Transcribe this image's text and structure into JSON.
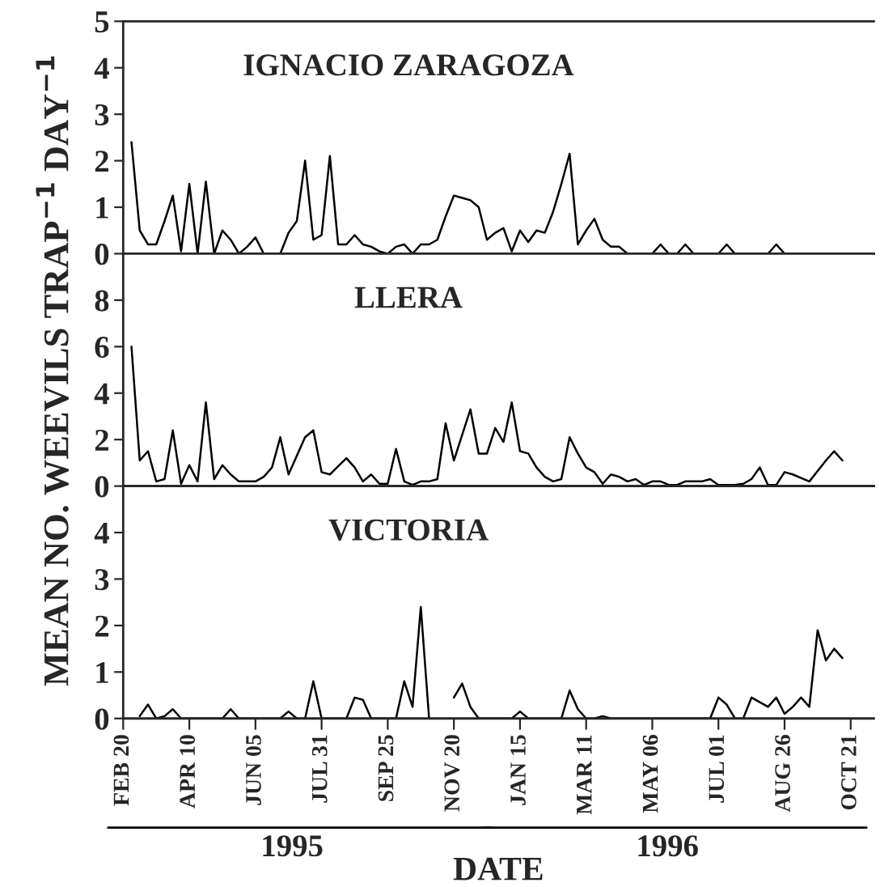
{
  "chart_data": [
    {
      "type": "line",
      "title": "IGNACIO ZARAGOZA",
      "ylim": [
        0,
        5
      ],
      "yticks": [
        0,
        1,
        2,
        3,
        4,
        5
      ],
      "tick_labels": "y",
      "categories": [
        null,
        null,
        null,
        null,
        null,
        null,
        null,
        null,
        null,
        null,
        null,
        null,
        null,
        null,
        null,
        null,
        null,
        null,
        null,
        null,
        null,
        null,
        null,
        null,
        null,
        null,
        null,
        null,
        null,
        null,
        null,
        null,
        null,
        null,
        null,
        null,
        null,
        null,
        null,
        null,
        null,
        null,
        null,
        null,
        null,
        null,
        null,
        null,
        null,
        null,
        null,
        null,
        null,
        null,
        null,
        null,
        null,
        null,
        null,
        null,
        null,
        null,
        null,
        null,
        null,
        null,
        null,
        null,
        null,
        null,
        null,
        null,
        null,
        null,
        null,
        null,
        null,
        null,
        null,
        null,
        null,
        null,
        null,
        null,
        null,
        null,
        null,
        null,
        null,
        null,
        null
      ],
      "series": [
        {
          "color": "#000000",
          "values": [
            null,
            2.4,
            0.5,
            0.2,
            0.2,
            0.7,
            1.25,
            0.05,
            1.5,
            0,
            1.55,
            0,
            0.5,
            0.3,
            0,
            0.15,
            0.35,
            0,
            0,
            0,
            0.45,
            0.7,
            2.0,
            0.3,
            0.4,
            2.1,
            0.2,
            0.2,
            0.4,
            0.2,
            0.15,
            0.05,
            0,
            0.15,
            0.2,
            0,
            0.2,
            0.2,
            0.3,
            0.8,
            1.25,
            1.2,
            1.15,
            1.0,
            0.3,
            0.45,
            0.55,
            0.05,
            0.5,
            0.25,
            0.5,
            0.45,
            0.9,
            1.5,
            2.15,
            0.2,
            0.5,
            0.75,
            0.3,
            0.15,
            0.15,
            0,
            0,
            0,
            0,
            0.2,
            0,
            0,
            0.2,
            0,
            0,
            0,
            0,
            0.2,
            0,
            0,
            0,
            0,
            0,
            0.2,
            0,
            0,
            0,
            0,
            0,
            0,
            0,
            0,
            null,
            null,
            null
          ]
        }
      ]
    },
    {
      "type": "line",
      "title": "LLERA",
      "ylabel": "MEAN NO. WEEVILS TRAP$^{−1}$ DAY$^{−1}$",
      "ylim": [
        0,
        10
      ],
      "yticks": [
        0,
        2,
        4,
        6,
        8
      ],
      "tick_labels": "y",
      "categories": [
        null,
        null,
        null,
        null,
        null,
        null,
        null,
        null,
        null,
        null,
        null,
        null,
        null,
        null,
        null,
        null,
        null,
        null,
        null,
        null,
        null,
        null,
        null,
        null,
        null,
        null,
        null,
        null,
        null,
        null,
        null,
        null,
        null,
        null,
        null,
        null,
        null,
        null,
        null,
        null,
        null,
        null,
        null,
        null,
        null,
        null,
        null,
        null,
        null,
        null,
        null,
        null,
        null,
        null,
        null,
        null,
        null,
        null,
        null,
        null,
        null,
        null,
        null,
        null,
        null,
        null,
        null,
        null,
        null,
        null,
        null,
        null,
        null,
        null,
        null,
        null,
        null,
        null,
        null,
        null,
        null,
        null,
        null,
        null,
        null,
        null,
        null,
        null,
        null,
        null,
        null
      ],
      "series": [
        {
          "color": "#000000",
          "values": [
            null,
            6.0,
            1.1,
            1.5,
            0.2,
            0.3,
            2.4,
            0.1,
            0.9,
            0.2,
            3.6,
            0.3,
            0.9,
            0.5,
            0.2,
            0.2,
            0.2,
            0.4,
            0.8,
            2.1,
            0.5,
            1.3,
            2.1,
            2.4,
            0.6,
            0.5,
            0.85,
            1.2,
            0.8,
            0.2,
            0.5,
            0.1,
            0.1,
            1.6,
            0.2,
            0.05,
            0.2,
            0.2,
            0.3,
            2.7,
            1.1,
            2.2,
            3.3,
            1.4,
            1.4,
            2.5,
            1.9,
            3.6,
            1.5,
            1.4,
            0.8,
            0.4,
            0.2,
            0.3,
            2.1,
            1.4,
            0.8,
            0.6,
            0.1,
            0.5,
            0.4,
            0.2,
            0.3,
            0.05,
            0.2,
            0.2,
            0.05,
            0.05,
            0.2,
            0.2,
            0.2,
            0.3,
            0.05,
            0.05,
            0.05,
            0.1,
            0.3,
            0.8,
            0.05,
            0.05,
            0.6,
            0.5,
            0.35,
            0.2,
            0.65,
            1.1,
            1.5,
            1.1,
            null,
            null,
            null
          ]
        }
      ]
    },
    {
      "type": "line",
      "title": "VICTORIA",
      "xlabel": "DATE",
      "ylim": [
        0,
        5
      ],
      "yticks": [
        0,
        1,
        2,
        3,
        4
      ],
      "categories": [
        "FEB 20",
        null,
        null,
        null,
        null,
        null,
        null,
        null,
        "APR 10",
        null,
        null,
        null,
        null,
        null,
        null,
        null,
        "JUN 05",
        null,
        null,
        null,
        null,
        null,
        null,
        null,
        "JUL 31",
        null,
        null,
        null,
        null,
        null,
        null,
        null,
        "SEP 25",
        null,
        null,
        null,
        null,
        null,
        null,
        null,
        "NOV 20",
        null,
        null,
        null,
        null,
        null,
        null,
        null,
        "JAN 15",
        null,
        null,
        null,
        null,
        null,
        null,
        null,
        "MAR 11",
        null,
        null,
        null,
        null,
        null,
        null,
        null,
        "MAY 06",
        null,
        null,
        null,
        null,
        null,
        null,
        null,
        "JUL 01",
        null,
        null,
        null,
        null,
        null,
        null,
        null,
        "AUG 26",
        null,
        null,
        null,
        null,
        null,
        null,
        null,
        "OCT 21",
        null,
        null
      ],
      "annotations": [
        "1995",
        "1996"
      ],
      "series": [
        {
          "color": "#000000",
          "values": [
            null,
            null,
            0.05,
            0.3,
            0,
            0.05,
            0.2,
            0,
            0,
            0,
            0,
            0,
            0,
            0.2,
            0,
            0,
            0,
            0,
            0,
            0,
            0.15,
            0,
            0,
            0.8,
            0,
            0,
            0,
            0,
            0.45,
            0.4,
            0,
            0,
            0,
            0,
            0.8,
            0.25,
            2.4,
            0,
            null,
            null,
            0.45,
            0.75,
            0.25,
            0,
            0,
            0,
            0,
            0,
            0.15,
            0,
            0,
            0,
            0,
            0,
            0.6,
            0.2,
            0,
            0,
            0.05,
            0,
            0,
            0,
            0,
            0,
            0,
            0,
            0,
            0,
            0,
            0,
            0,
            0,
            0.45,
            0.3,
            0,
            0,
            0.45,
            0.35,
            0.25,
            0.45,
            0.1,
            0.25,
            0.45,
            0.25,
            1.9,
            1.25,
            1.5,
            1.3,
            null,
            null,
            null
          ]
        }
      ]
    }
  ]
}
